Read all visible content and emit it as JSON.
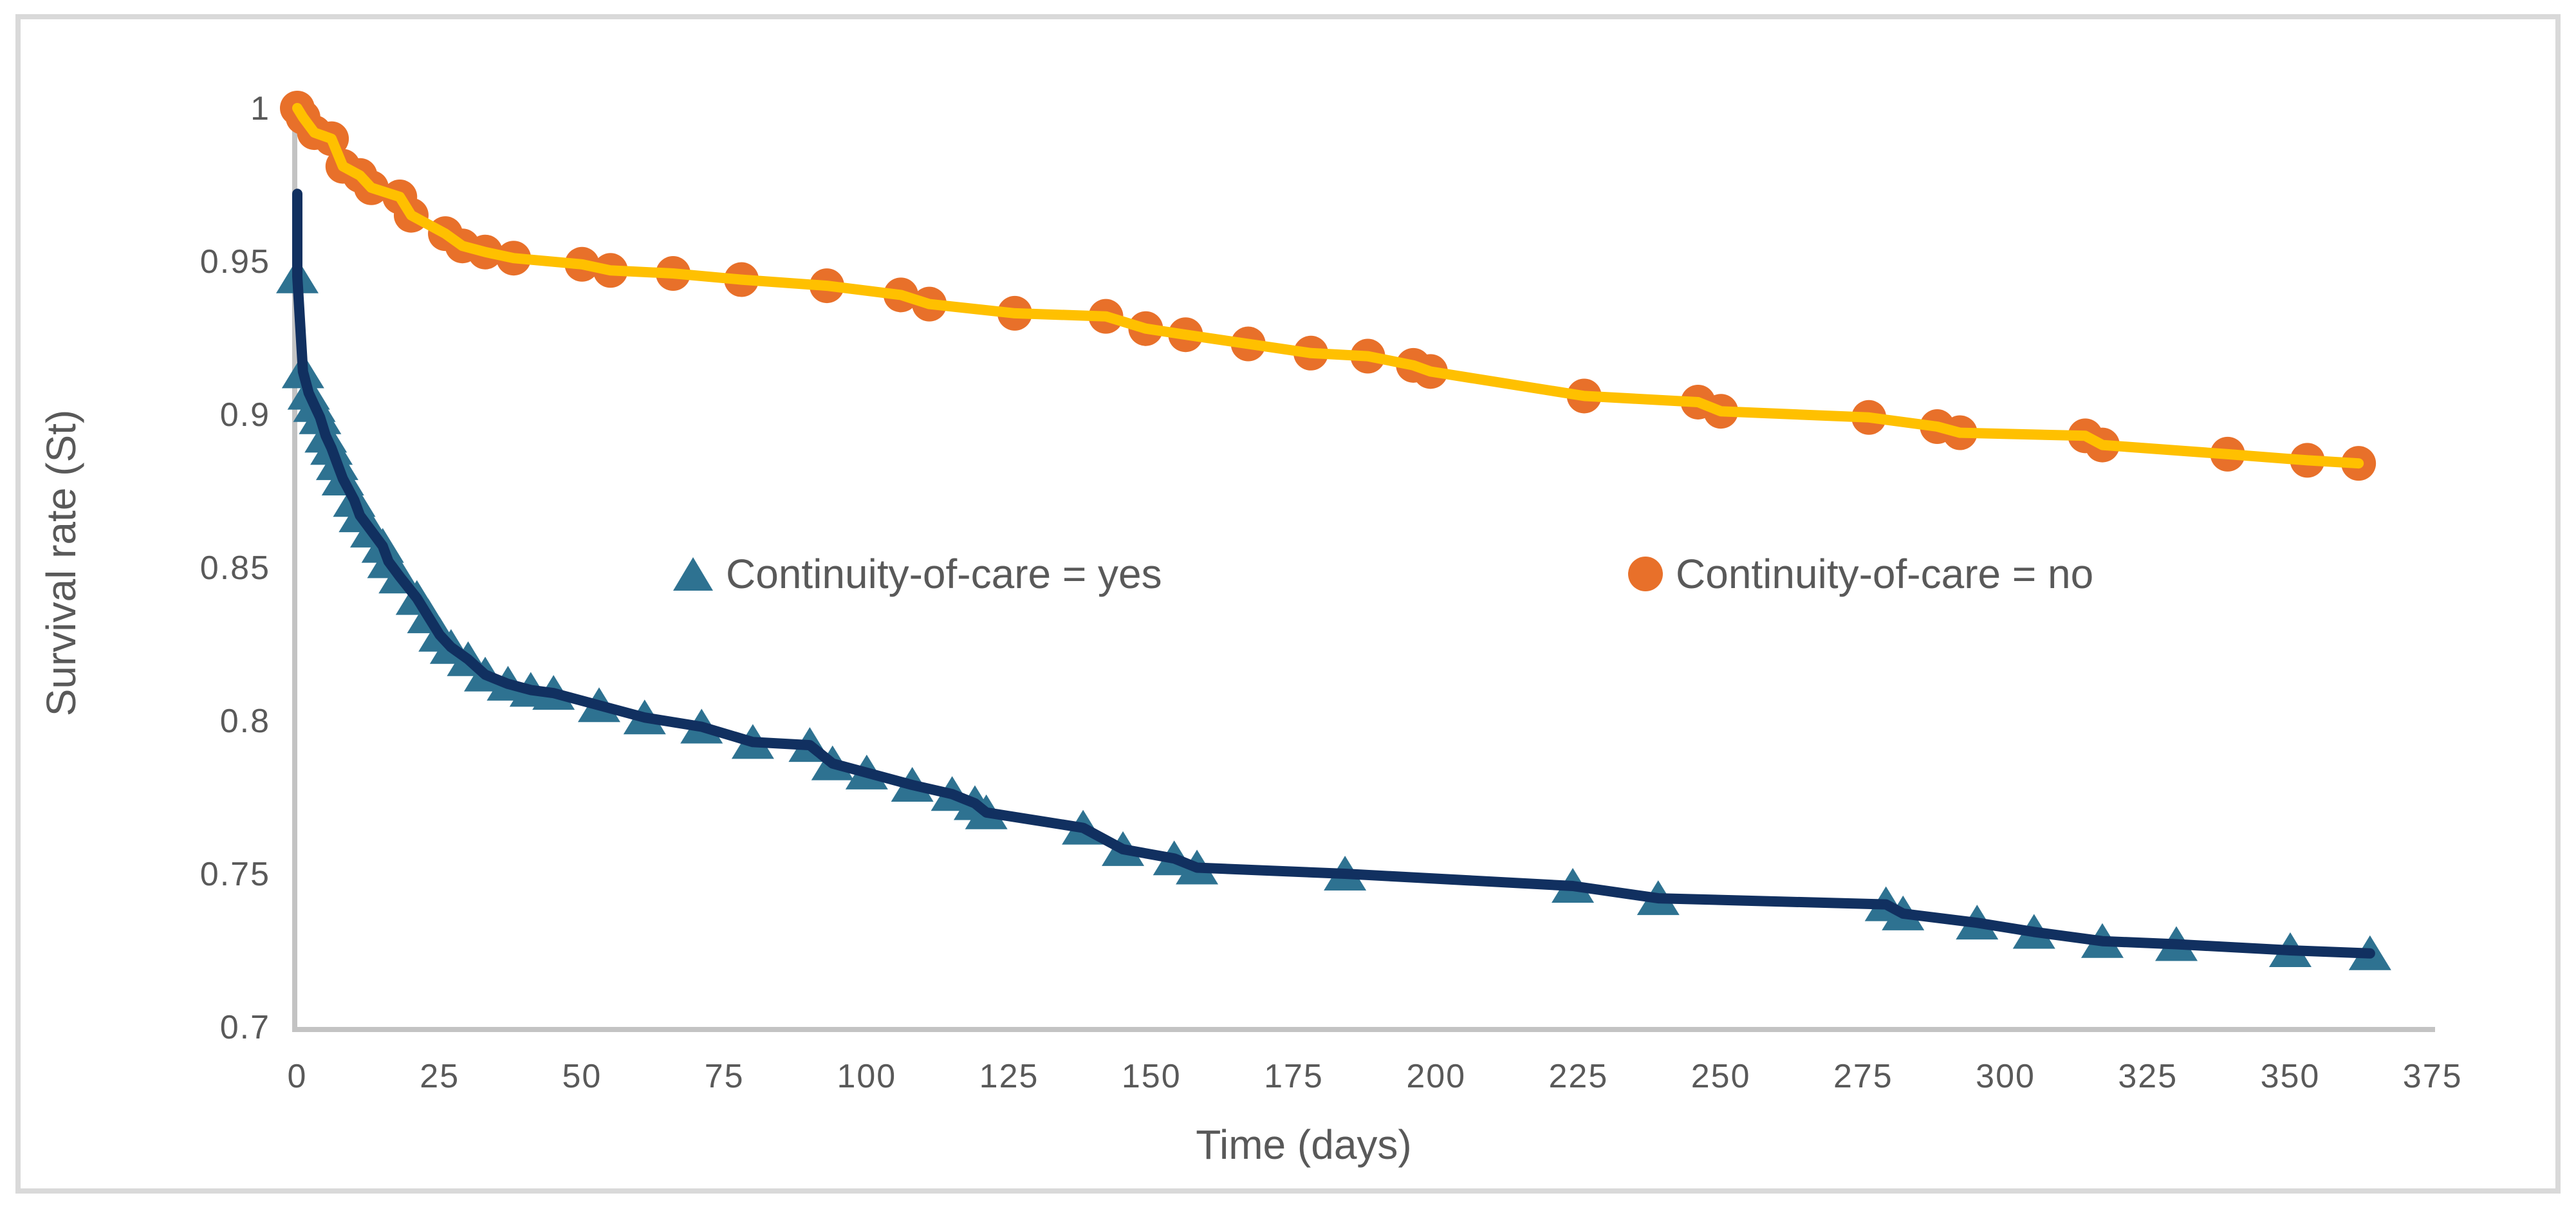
{
  "figure": {
    "background": "#ffffff",
    "border_color": "#d9d9d9",
    "axis_line_color": "#c3c3c3",
    "text_color": "#595959"
  },
  "chart_data": {
    "type": "line",
    "title": "",
    "xlabel": "Time (days)",
    "ylabel": "Survival rate (St)",
    "xlim": [
      0,
      375
    ],
    "ylim": [
      0.7,
      1.0
    ],
    "grid": "off",
    "legend_position": "inside-plot-upper-middle",
    "x_ticks": [
      0,
      25,
      50,
      75,
      100,
      125,
      150,
      175,
      200,
      225,
      250,
      275,
      300,
      325,
      350,
      375
    ],
    "y_ticks": [
      {
        "value": 1.0,
        "label": "1"
      },
      {
        "value": 0.95,
        "label": "0.95"
      },
      {
        "value": 0.9,
        "label": "0.9"
      },
      {
        "value": 0.85,
        "label": "0.85"
      },
      {
        "value": 0.8,
        "label": "0.8"
      },
      {
        "value": 0.75,
        "label": "0.75"
      },
      {
        "value": 0.7,
        "label": "0.7"
      }
    ],
    "series": [
      {
        "name": "Continuity-of-care = yes",
        "legend_label": "Continuity-of-care = yes",
        "marker": "triangle",
        "marker_color": "#2e7291",
        "line_color": "#113060",
        "line_width": 16,
        "line_prefix_points": [
          [
            0,
            0.972
          ]
        ],
        "points": [
          [
            0,
            0.945
          ],
          [
            1,
            0.914
          ],
          [
            2,
            0.907
          ],
          [
            3,
            0.903
          ],
          [
            4,
            0.899
          ],
          [
            5,
            0.893
          ],
          [
            6,
            0.889
          ],
          [
            7,
            0.884
          ],
          [
            8,
            0.879
          ],
          [
            10,
            0.872
          ],
          [
            11,
            0.867
          ],
          [
            13,
            0.862
          ],
          [
            15,
            0.857
          ],
          [
            16,
            0.852
          ],
          [
            18,
            0.847
          ],
          [
            21,
            0.84
          ],
          [
            23,
            0.834
          ],
          [
            25,
            0.828
          ],
          [
            27,
            0.824
          ],
          [
            30,
            0.82
          ],
          [
            33,
            0.815
          ],
          [
            37,
            0.812
          ],
          [
            41,
            0.81
          ],
          [
            45,
            0.809
          ],
          [
            53,
            0.805
          ],
          [
            61,
            0.801
          ],
          [
            71,
            0.798
          ],
          [
            80,
            0.793
          ],
          [
            90,
            0.792
          ],
          [
            94,
            0.786
          ],
          [
            100,
            0.783
          ],
          [
            108,
            0.779
          ],
          [
            115,
            0.776
          ],
          [
            119,
            0.773
          ],
          [
            121,
            0.77
          ],
          [
            138,
            0.765
          ],
          [
            145,
            0.758
          ],
          [
            154,
            0.755
          ],
          [
            158,
            0.752
          ],
          [
            184,
            0.75
          ],
          [
            224,
            0.746
          ],
          [
            239,
            0.742
          ],
          [
            279,
            0.74
          ],
          [
            282,
            0.737
          ],
          [
            295,
            0.734
          ],
          [
            305,
            0.731
          ],
          [
            317,
            0.728
          ],
          [
            330,
            0.727
          ],
          [
            350,
            0.725
          ],
          [
            364,
            0.724
          ]
        ]
      },
      {
        "name": "Continuity-of-care = no",
        "legend_label": "Continuity-of-care = no",
        "marker": "circle",
        "marker_color": "#e8702a",
        "line_color": "#ffc000",
        "line_width": 16,
        "line_prefix_points": [],
        "points": [
          [
            0,
            1.0
          ],
          [
            1,
            0.997
          ],
          [
            3,
            0.992
          ],
          [
            6,
            0.99
          ],
          [
            8,
            0.981
          ],
          [
            11,
            0.978
          ],
          [
            13,
            0.974
          ],
          [
            18,
            0.971
          ],
          [
            20,
            0.965
          ],
          [
            26,
            0.959
          ],
          [
            29,
            0.955
          ],
          [
            33,
            0.953
          ],
          [
            38,
            0.951
          ],
          [
            50,
            0.949
          ],
          [
            55,
            0.947
          ],
          [
            66,
            0.946
          ],
          [
            78,
            0.944
          ],
          [
            93,
            0.942
          ],
          [
            106,
            0.939
          ],
          [
            111,
            0.936
          ],
          [
            126,
            0.933
          ],
          [
            142,
            0.932
          ],
          [
            149,
            0.928
          ],
          [
            156,
            0.926
          ],
          [
            167,
            0.923
          ],
          [
            178,
            0.92
          ],
          [
            188,
            0.919
          ],
          [
            196,
            0.916
          ],
          [
            199,
            0.914
          ],
          [
            226,
            0.906
          ],
          [
            246,
            0.904
          ],
          [
            250,
            0.901
          ],
          [
            276,
            0.899
          ],
          [
            288,
            0.896
          ],
          [
            292,
            0.894
          ],
          [
            314,
            0.893
          ],
          [
            317,
            0.89
          ],
          [
            339,
            0.887
          ],
          [
            353,
            0.885
          ],
          [
            362,
            0.884
          ]
        ]
      }
    ]
  }
}
